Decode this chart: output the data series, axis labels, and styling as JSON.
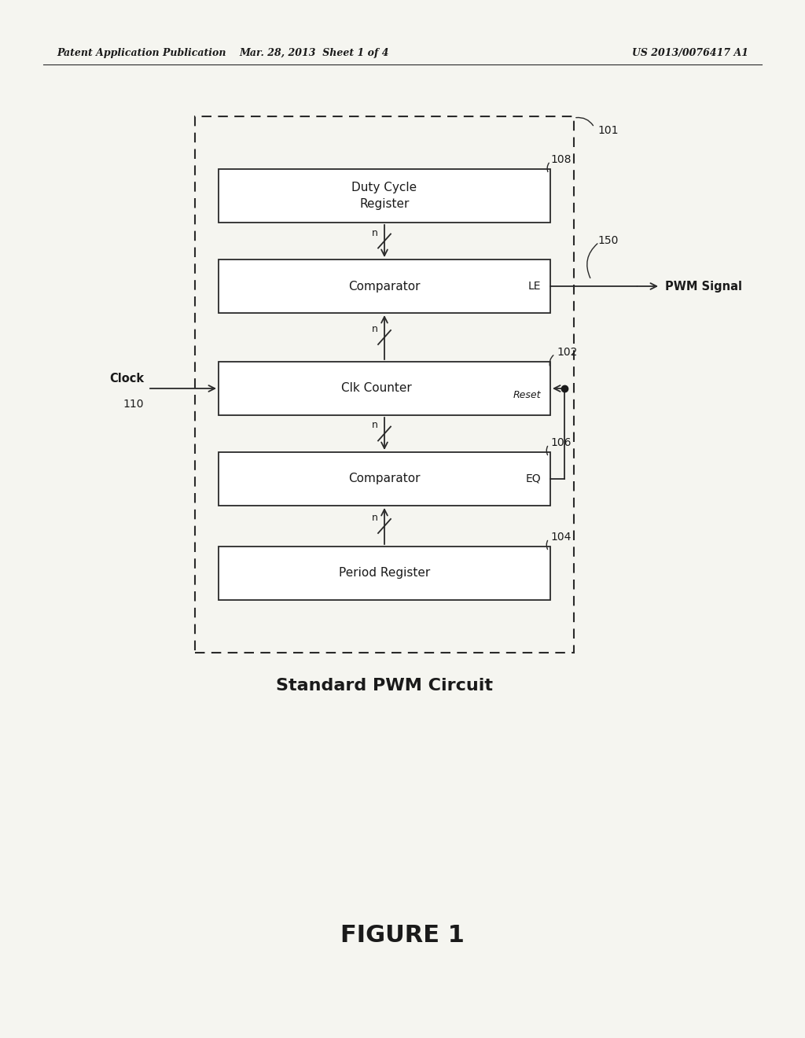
{
  "page_width": 10.24,
  "page_height": 13.2,
  "bg_color": "#f5f5f0",
  "header_left": "Patent Application Publication",
  "header_center": "Mar. 28, 2013  Sheet 1 of 4",
  "header_right": "US 2013/0076417 A1",
  "figure_label": "FIGURE 1",
  "caption": "Standard PWM Circuit",
  "duty_cycle_text": "Duty Cycle\nRegister",
  "comparator_le_text": "Comparator",
  "counter_text": "Clk Counter",
  "comparator_eq_text": "Comparator",
  "period_text": "Period Register",
  "clock_text": "Clock",
  "pwm_signal_text": "PWM Signal",
  "label_le": "LE",
  "label_eq": "EQ",
  "label_reset": "Reset",
  "label_clk": "Clk",
  "ref_101": "101",
  "ref_108": "108",
  "ref_102": "102",
  "ref_106": "106",
  "ref_104": "104",
  "ref_150": "150",
  "ref_110": "110",
  "lc": "#2a2a2a",
  "tc": "#1a1a1a",
  "bf": "#ffffff",
  "be": "#2a2a2a"
}
